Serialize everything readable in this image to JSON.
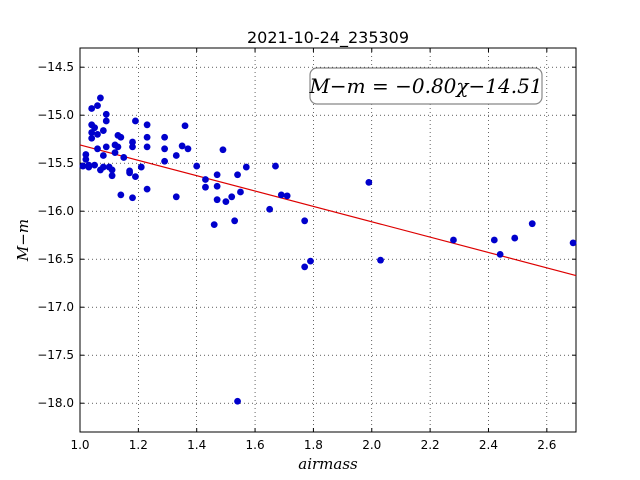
{
  "chart_data": {
    "type": "scatter",
    "title": "2021-10-24_235309",
    "xlabel": "airmass",
    "ylabel": "M−m",
    "xlim": [
      1.0,
      2.7
    ],
    "ylim": [
      -18.3,
      -14.3
    ],
    "grid": true,
    "x_ticks": [
      1.0,
      1.2,
      1.4,
      1.6,
      1.8,
      2.0,
      2.2,
      2.4,
      2.6
    ],
    "x_tick_labels": [
      "1.0",
      "1.2",
      "1.4",
      "1.6",
      "1.8",
      "2.0",
      "2.2",
      "2.4",
      "2.6"
    ],
    "y_ticks": [
      -14.5,
      -15.0,
      -15.5,
      -16.0,
      -16.5,
      -17.0,
      -17.5,
      -18.0
    ],
    "y_tick_labels": [
      "−14.5",
      "−15.0",
      "−15.5",
      "−16.0",
      "−16.5",
      "−17.0",
      "−17.5",
      "−18.0"
    ],
    "annotation": "M−m = −0.80χ−14.51",
    "fit": {
      "slope": -0.8,
      "intercept": -14.51,
      "color": "#dd0000"
    },
    "marker_color": "#0000cc",
    "points": [
      [
        1.01,
        -15.53
      ],
      [
        1.02,
        -15.41
      ],
      [
        1.02,
        -15.46
      ],
      [
        1.03,
        -15.52
      ],
      [
        1.03,
        -15.54
      ],
      [
        1.04,
        -14.93
      ],
      [
        1.04,
        -15.1
      ],
      [
        1.04,
        -15.18
      ],
      [
        1.04,
        -15.24
      ],
      [
        1.05,
        -15.13
      ],
      [
        1.05,
        -15.52
      ],
      [
        1.06,
        -14.9
      ],
      [
        1.06,
        -15.2
      ],
      [
        1.06,
        -15.35
      ],
      [
        1.07,
        -14.82
      ],
      [
        1.07,
        -15.57
      ],
      [
        1.08,
        -15.16
      ],
      [
        1.08,
        -15.54
      ],
      [
        1.08,
        -15.42
      ],
      [
        1.09,
        -14.99
      ],
      [
        1.09,
        -15.06
      ],
      [
        1.09,
        -15.33
      ],
      [
        1.1,
        -15.54
      ],
      [
        1.11,
        -15.63
      ],
      [
        1.11,
        -15.57
      ],
      [
        1.12,
        -15.31
      ],
      [
        1.12,
        -15.39
      ],
      [
        1.13,
        -15.21
      ],
      [
        1.13,
        -15.33
      ],
      [
        1.14,
        -15.23
      ],
      [
        1.14,
        -15.83
      ],
      [
        1.15,
        -15.44
      ],
      [
        1.17,
        -15.58
      ],
      [
        1.17,
        -15.6
      ],
      [
        1.18,
        -15.86
      ],
      [
        1.18,
        -15.28
      ],
      [
        1.18,
        -15.33
      ],
      [
        1.19,
        -15.06
      ],
      [
        1.19,
        -15.64
      ],
      [
        1.21,
        -15.54
      ],
      [
        1.23,
        -15.1
      ],
      [
        1.23,
        -15.23
      ],
      [
        1.23,
        -15.33
      ],
      [
        1.23,
        -15.77
      ],
      [
        1.29,
        -15.23
      ],
      [
        1.29,
        -15.35
      ],
      [
        1.29,
        -15.48
      ],
      [
        1.33,
        -15.42
      ],
      [
        1.33,
        -15.85
      ],
      [
        1.35,
        -15.32
      ],
      [
        1.36,
        -15.11
      ],
      [
        1.37,
        -15.35
      ],
      [
        1.4,
        -15.53
      ],
      [
        1.43,
        -15.75
      ],
      [
        1.43,
        -15.67
      ],
      [
        1.46,
        -16.14
      ],
      [
        1.47,
        -15.62
      ],
      [
        1.47,
        -15.74
      ],
      [
        1.47,
        -15.88
      ],
      [
        1.49,
        -15.36
      ],
      [
        1.5,
        -15.9
      ],
      [
        1.52,
        -15.85
      ],
      [
        1.53,
        -16.1
      ],
      [
        1.54,
        -15.62
      ],
      [
        1.55,
        -15.8
      ],
      [
        1.54,
        -17.98
      ],
      [
        1.57,
        -15.54
      ],
      [
        1.65,
        -15.98
      ],
      [
        1.67,
        -15.53
      ],
      [
        1.69,
        -15.83
      ],
      [
        1.71,
        -15.84
      ],
      [
        1.77,
        -16.1
      ],
      [
        1.77,
        -16.58
      ],
      [
        1.79,
        -16.52
      ],
      [
        1.99,
        -15.7
      ],
      [
        2.03,
        -16.51
      ],
      [
        2.28,
        -16.3
      ],
      [
        2.42,
        -16.3
      ],
      [
        2.44,
        -16.45
      ],
      [
        2.49,
        -16.28
      ],
      [
        2.55,
        -16.13
      ],
      [
        2.69,
        -16.33
      ]
    ]
  }
}
